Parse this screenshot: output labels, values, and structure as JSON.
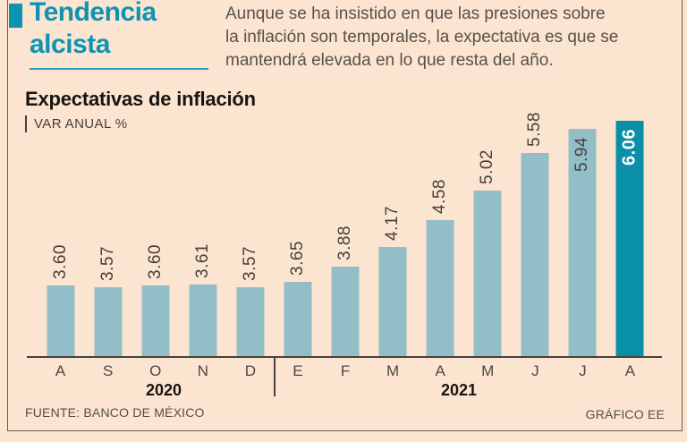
{
  "header": {
    "title_line1": "Tendencia",
    "title_line2": "alcista",
    "intro_lines": [
      "Aunque se ha insistido en que las presiones sobre",
      "la inflación son temporales, la expectativa es que se",
      "mantendrá elevada en lo que resta del año."
    ]
  },
  "chart": {
    "title": "Expectativas de inflación",
    "subtitle": "VAR ANUAL %"
  },
  "chart_data": {
    "type": "bar",
    "title": "Expectativas de inflación",
    "ylabel": "VAR ANUAL %",
    "categories": [
      "A",
      "S",
      "O",
      "N",
      "D",
      "E",
      "F",
      "M",
      "A",
      "M",
      "J",
      "J",
      "A"
    ],
    "values": [
      3.6,
      3.57,
      3.6,
      3.61,
      3.57,
      3.65,
      3.88,
      4.17,
      4.58,
      5.02,
      5.58,
      5.94,
      6.06
    ],
    "labels": [
      "3.60",
      "3.57",
      "3.60",
      "3.61",
      "3.57",
      "3.65",
      "3.88",
      "4.17",
      "4.58",
      "5.02",
      "5.58",
      "5.94",
      "6.06"
    ],
    "year_groups": [
      {
        "label": "2020",
        "category_indexes": [
          0,
          1,
          2,
          3,
          4
        ]
      },
      {
        "label": "2021",
        "category_indexes": [
          5,
          6,
          7,
          8,
          9,
          10,
          11,
          12
        ]
      }
    ],
    "highlight_index": 12,
    "inside_label_indexes": [
      11,
      12
    ],
    "value_label_rotation_deg": -90,
    "grid": false,
    "legend": false,
    "colors": {
      "bar": "#94bec7",
      "bar_highlight": "#0a8fa8",
      "background": "#fce5d0",
      "accent_title": "#0f93b4",
      "axis": "#45403a"
    }
  },
  "footer": {
    "source": "FUENTE: BANCO DE MÉXICO",
    "credit": "GRÁFICO EE"
  }
}
